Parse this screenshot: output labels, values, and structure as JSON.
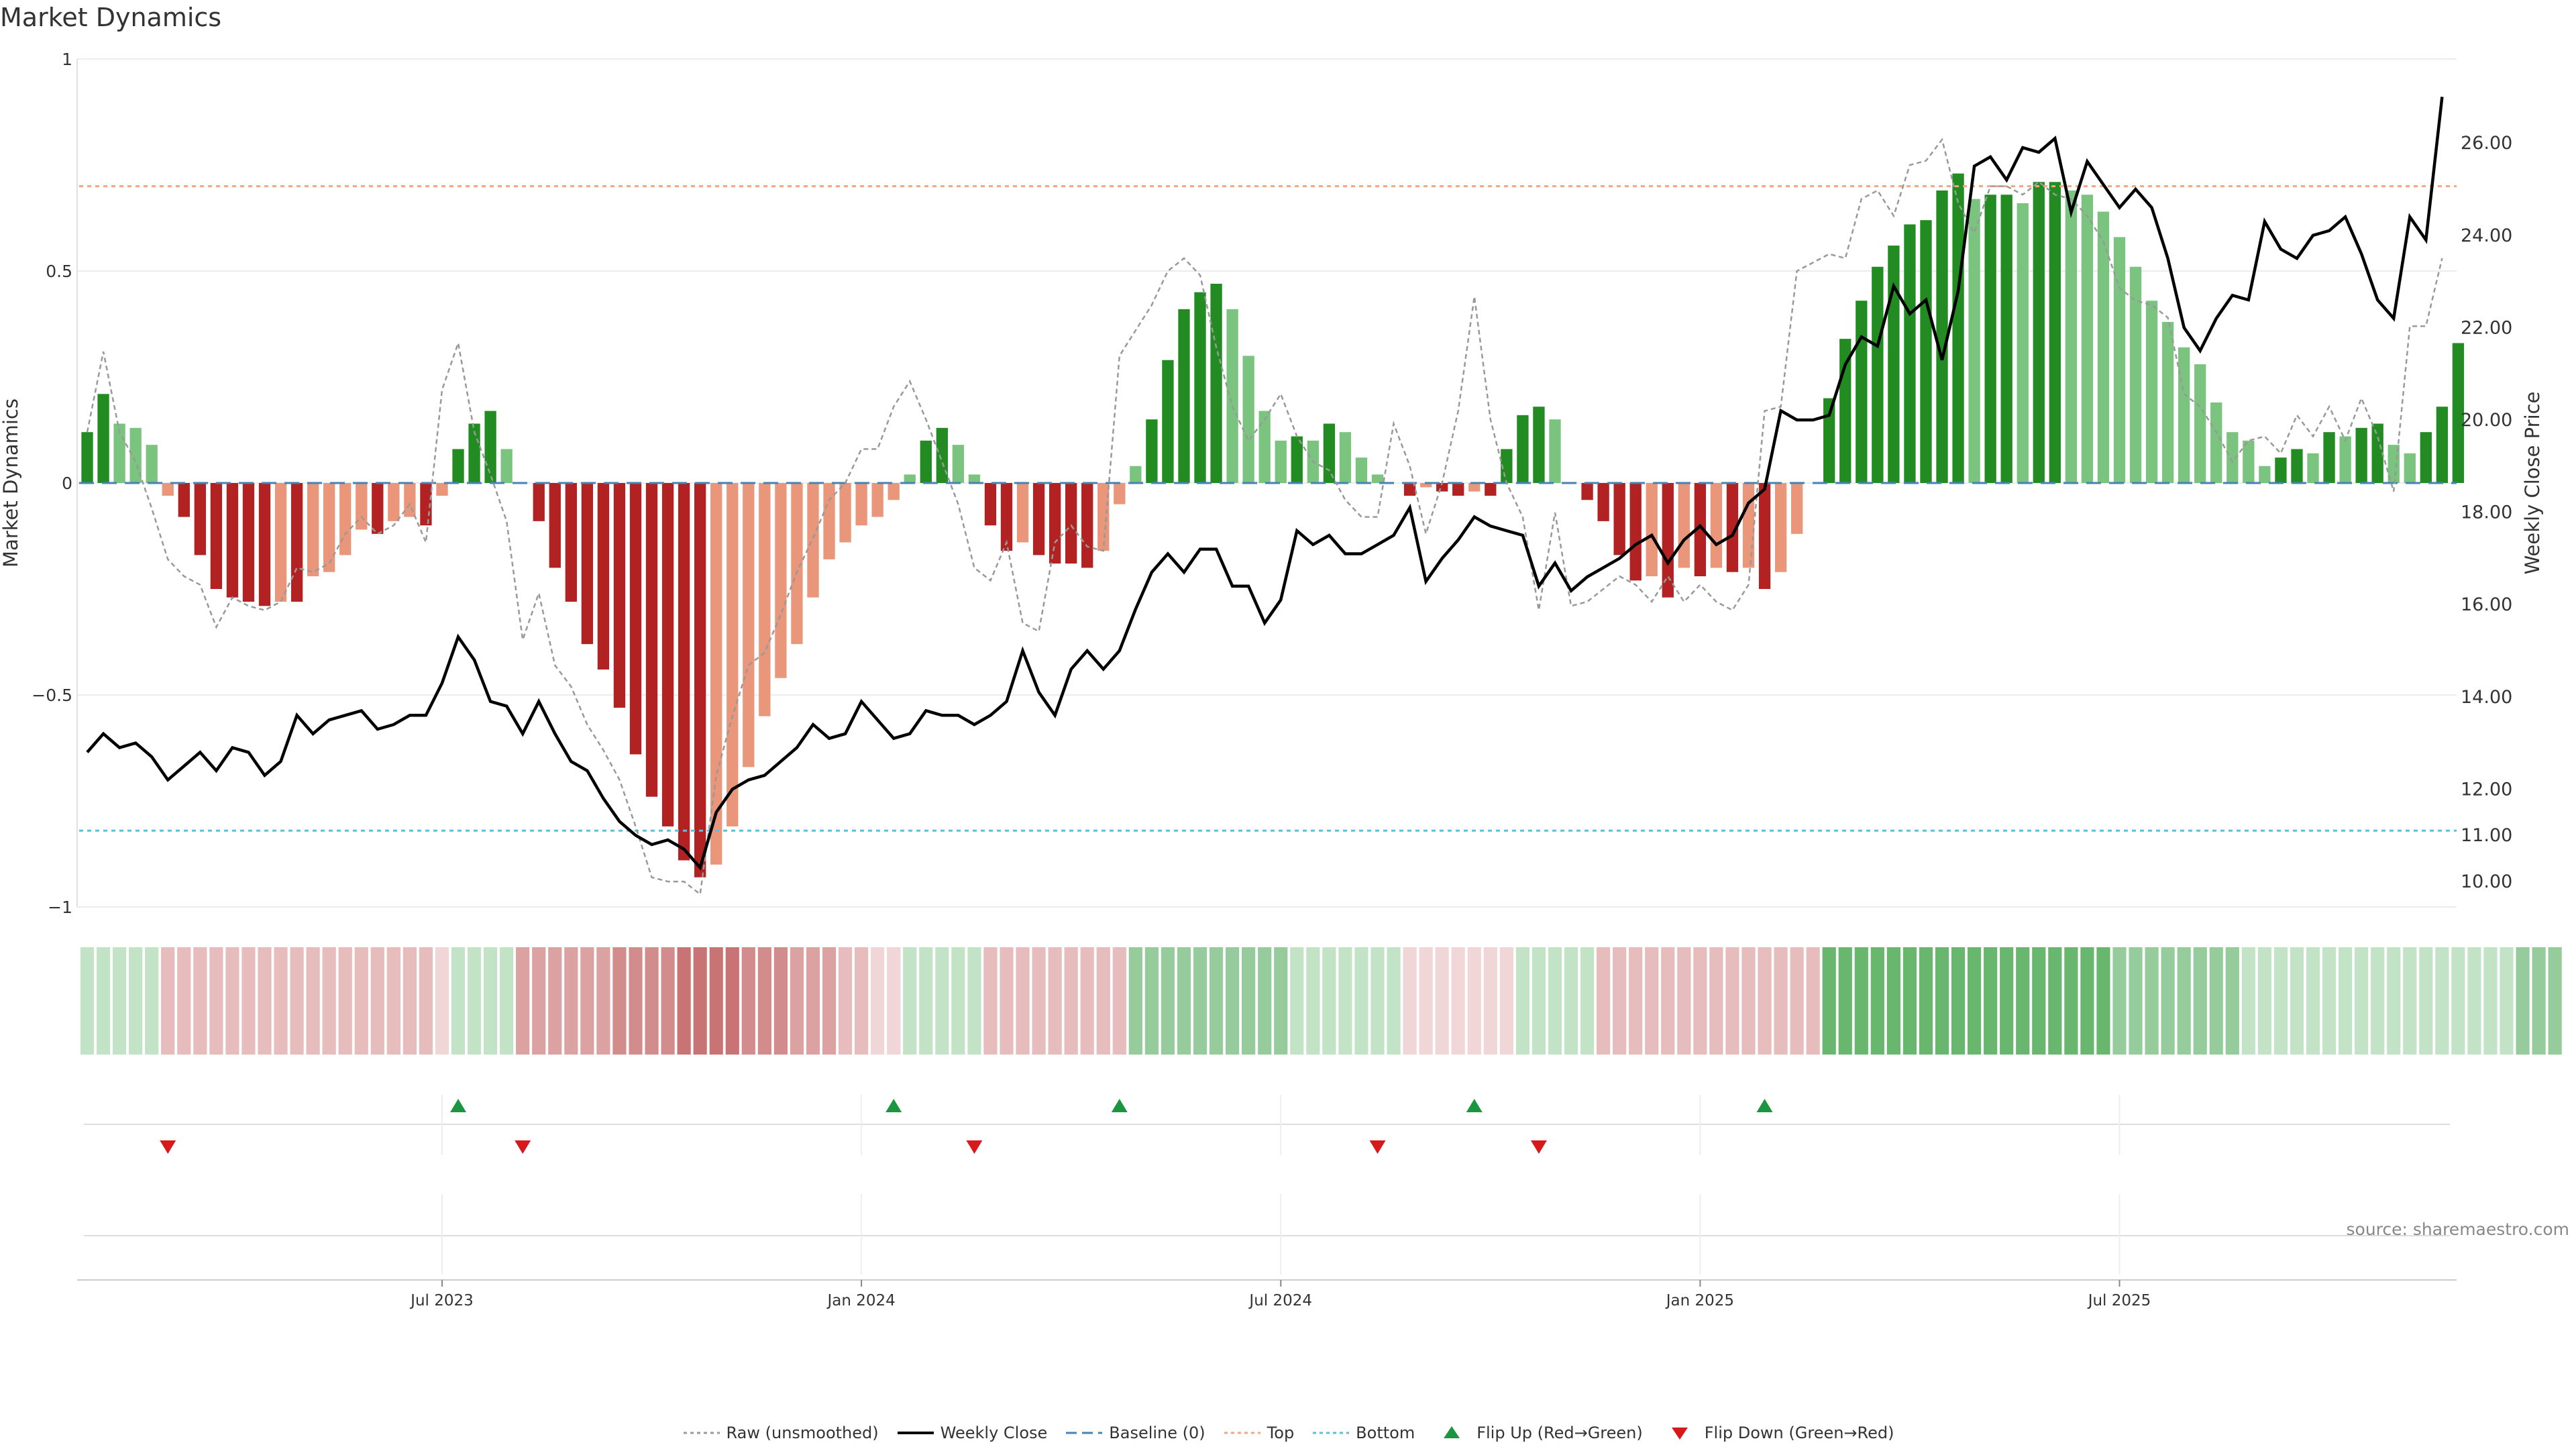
{
  "page": {
    "title": "Market Dynamics",
    "source": "source: sharemaestro.com"
  },
  "chart_data": {
    "type": "bar",
    "title": "Market Dynamics",
    "ylabel": "Market Dynamics",
    "y2label": "Weekly Close Price",
    "ylim": [
      -1,
      1
    ],
    "y2lim": [
      9.5,
      28
    ],
    "yticks": [
      "1",
      "0.5",
      "0",
      "−0.5",
      "−1"
    ],
    "yticks_values": [
      1,
      0.5,
      0,
      -0.5,
      -1
    ],
    "y2ticks": [
      "26.00",
      "24.00",
      "22.00",
      "20.00",
      "18.00",
      "16.00",
      "14.00",
      "12.00",
      "11.00",
      "10.00"
    ],
    "y2ticks_values": [
      26,
      24,
      22,
      20,
      18,
      16,
      14,
      12,
      11,
      10
    ],
    "xticks": [
      "Jul 2023",
      "Jan 2024",
      "Jul 2024",
      "Jan 2025",
      "Jul 2025"
    ],
    "xticks_week_index": [
      22,
      48,
      74,
      100,
      126
    ],
    "top_level": 0.7,
    "bottom_level": -0.82,
    "colors": {
      "strong_up": "#228b22",
      "weak_up": "#7bc47f",
      "strong_down": "#b22222",
      "weak_down": "#e9967a",
      "close": "#000000",
      "raw": "#999999",
      "baseline": "#4682b4",
      "top": "#f4a582",
      "bottom": "#5bc0de",
      "flip_up": "#1a9641",
      "flip_down": "#d7191c"
    },
    "series": [
      {
        "name": "Market Dynamics",
        "values": [
          0.12,
          0.21,
          0.14,
          0.13,
          0.09,
          -0.03,
          -0.08,
          -0.17,
          -0.25,
          -0.27,
          -0.28,
          -0.29,
          -0.28,
          -0.28,
          -0.22,
          -0.21,
          -0.17,
          -0.11,
          -0.12,
          -0.09,
          -0.08,
          -0.1,
          -0.03,
          0.08,
          0.14,
          0.17,
          0.08,
          0,
          -0.09,
          -0.2,
          -0.28,
          -0.38,
          -0.44,
          -0.53,
          -0.64,
          -0.74,
          -0.81,
          -0.89,
          -0.93,
          -0.9,
          -0.81,
          -0.67,
          -0.55,
          -0.46,
          -0.38,
          -0.27,
          -0.18,
          -0.14,
          -0.1,
          -0.08,
          -0.04,
          0.02,
          0.1,
          0.13,
          0.09,
          0.02,
          -0.1,
          -0.16,
          -0.14,
          -0.17,
          -0.19,
          -0.19,
          -0.2,
          -0.16,
          -0.05,
          0.04,
          0.15,
          0.29,
          0.41,
          0.45,
          0.47,
          0.41,
          0.3,
          0.17,
          0.1,
          0.11,
          0.1,
          0.14,
          0.12,
          0.06,
          0.02,
          0,
          -0.03,
          -0.01,
          -0.02,
          -0.03,
          -0.02,
          -0.03,
          0.08,
          0.16,
          0.18,
          0.15,
          0,
          -0.04,
          -0.09,
          -0.17,
          -0.23,
          -0.22,
          -0.27,
          -0.2,
          -0.22,
          -0.2,
          -0.21,
          -0.2,
          -0.25,
          -0.21,
          -0.12,
          0,
          0.2,
          0.34,
          0.43,
          0.51,
          0.56,
          0.61,
          0.62,
          0.69,
          0.73,
          0.67,
          0.68,
          0.68,
          0.66,
          0.71,
          0.71,
          0.69,
          0.68,
          0.64,
          0.58,
          0.51,
          0.43,
          0.38,
          0.32,
          0.28,
          0.19,
          0.12,
          0.1,
          0.04,
          0.06,
          0.08,
          0.07,
          0.12,
          0.11,
          0.13,
          0.14,
          0.09,
          0.07,
          0.12,
          0.18,
          0.33
        ]
      },
      {
        "name": "Raw (unsmoothed)",
        "values": [
          0.12,
          0.31,
          0.12,
          0.05,
          -0.06,
          -0.18,
          -0.22,
          -0.24,
          -0.34,
          -0.27,
          -0.29,
          -0.3,
          -0.28,
          -0.2,
          -0.21,
          -0.19,
          -0.12,
          -0.08,
          -0.12,
          -0.1,
          -0.05,
          -0.14,
          0.22,
          0.33,
          0.12,
          0.02,
          -0.09,
          -0.37,
          -0.26,
          -0.43,
          -0.48,
          -0.57,
          -0.63,
          -0.7,
          -0.81,
          -0.93,
          -0.94,
          -0.94,
          -0.97,
          -0.69,
          -0.55,
          -0.43,
          -0.4,
          -0.31,
          -0.21,
          -0.13,
          -0.04,
          0.0,
          0.08,
          0.08,
          0.18,
          0.24,
          0.15,
          0.05,
          -0.05,
          -0.2,
          -0.23,
          -0.14,
          -0.33,
          -0.35,
          -0.14,
          -0.1,
          -0.15,
          -0.16,
          0.3,
          0.36,
          0.42,
          0.5,
          0.53,
          0.49,
          0.32,
          0.18,
          0.1,
          0.15,
          0.21,
          0.11,
          0.05,
          0.03,
          -0.04,
          -0.08,
          -0.08,
          0.14,
          0.04,
          -0.12,
          0.0,
          0.17,
          0.44,
          0.15,
          0.0,
          -0.08,
          -0.3,
          -0.07,
          -0.29,
          -0.28,
          -0.25,
          -0.22,
          -0.24,
          -0.28,
          -0.22,
          -0.28,
          -0.24,
          -0.28,
          -0.3,
          -0.24,
          0.17,
          0.18,
          0.5,
          0.52,
          0.54,
          0.53,
          0.67,
          0.69,
          0.63,
          0.75,
          0.76,
          0.81,
          0.66,
          0.59,
          0.7,
          0.7,
          0.68,
          0.71,
          0.68,
          0.67,
          0.63,
          0.57,
          0.46,
          0.43,
          0.42,
          0.39,
          0.21,
          0.18,
          0.12,
          0.05,
          0.1,
          0.11,
          0.07,
          0.16,
          0.11,
          0.18,
          0.1,
          0.2,
          0.11,
          -0.02,
          0.37,
          0.37,
          0.53
        ]
      },
      {
        "name": "Weekly Close",
        "values": [
          12.8,
          13.2,
          12.9,
          13.0,
          12.7,
          12.2,
          12.5,
          12.8,
          12.4,
          12.9,
          12.8,
          12.3,
          12.6,
          13.6,
          13.2,
          13.5,
          13.6,
          13.7,
          13.3,
          13.4,
          13.6,
          13.6,
          14.3,
          15.3,
          14.8,
          13.9,
          13.8,
          13.2,
          13.9,
          13.2,
          12.6,
          12.4,
          11.8,
          11.3,
          11.0,
          10.8,
          10.9,
          10.7,
          10.3,
          11.5,
          12.0,
          12.2,
          12.3,
          12.6,
          12.9,
          13.4,
          13.1,
          13.2,
          13.9,
          13.5,
          13.1,
          13.2,
          13.7,
          13.6,
          13.6,
          13.4,
          13.6,
          13.9,
          15.0,
          14.1,
          13.6,
          14.6,
          15.0,
          14.6,
          15.0,
          15.9,
          16.7,
          17.1,
          16.7,
          17.2,
          17.2,
          16.4,
          16.4,
          15.6,
          16.1,
          17.6,
          17.3,
          17.5,
          17.1,
          17.1,
          17.3,
          17.5,
          18.1,
          16.5,
          17.0,
          17.4,
          17.9,
          17.7,
          17.6,
          17.5,
          16.4,
          16.9,
          16.3,
          16.6,
          16.8,
          17.0,
          17.3,
          17.5,
          16.9,
          17.4,
          17.7,
          17.3,
          17.5,
          18.2,
          18.5,
          20.2,
          20.0,
          20.0,
          20.1,
          21.2,
          21.8,
          21.6,
          22.9,
          22.3,
          22.6,
          21.3,
          22.8,
          25.5,
          25.7,
          25.2,
          25.9,
          25.8,
          26.1,
          24.5,
          25.6,
          25.1,
          24.6,
          25.0,
          24.6,
          23.5,
          22.0,
          21.5,
          22.2,
          22.7,
          22.6,
          24.3,
          23.7,
          23.5,
          24.0,
          24.1,
          24.4,
          23.6,
          22.6,
          22.2,
          24.4,
          23.9,
          27.0
        ]
      }
    ],
    "regime_strength": [
      1,
      1,
      1,
      1,
      1,
      -2,
      -2,
      -2,
      -2,
      -2,
      -2,
      -2,
      -2,
      -2,
      -2,
      -2,
      -2,
      -2,
      -2,
      -2,
      -2,
      -2,
      -1,
      1,
      1,
      1,
      1,
      -3,
      -3,
      -3,
      -3,
      -3,
      -3,
      -4,
      -4,
      -4,
      -4,
      -5,
      -5,
      -5,
      -5,
      -4,
      -4,
      -4,
      -3,
      -3,
      -3,
      -2,
      -2,
      -1,
      -1,
      1,
      1,
      1,
      1,
      1,
      -2,
      -2,
      -2,
      -2,
      -2,
      -2,
      -2,
      -2,
      -2,
      2,
      2,
      2,
      2,
      2,
      2,
      2,
      2,
      2,
      2,
      1,
      1,
      1,
      1,
      1,
      1,
      1,
      -1,
      -1,
      -1,
      -1,
      -1,
      -1,
      -1,
      1,
      1,
      1,
      1,
      1,
      -2,
      -2,
      -2,
      -2,
      -2,
      -2,
      -2,
      -2,
      -2,
      -2,
      -2,
      -2,
      -2,
      -2,
      3,
      3,
      3,
      3,
      3,
      3,
      3,
      3,
      3,
      3,
      3,
      3,
      3,
      3,
      3,
      3,
      3,
      3,
      2,
      2,
      2,
      2,
      2,
      2,
      2,
      2,
      1,
      1,
      1,
      1,
      1,
      1,
      1,
      1,
      1,
      1,
      1,
      1,
      1,
      1,
      1,
      1,
      1,
      2,
      2,
      2
    ],
    "flip_up_weeks": [
      23,
      50,
      64,
      86,
      104
    ],
    "flip_down_weeks": [
      5,
      27,
      55,
      80,
      90
    ],
    "legend": [
      {
        "label": "Raw (unsmoothed)",
        "kind": "dotted",
        "color": "#999999"
      },
      {
        "label": "Weekly Close",
        "kind": "solid",
        "color": "#000000"
      },
      {
        "label": "Baseline (0)",
        "kind": "dashed",
        "color": "#4682b4"
      },
      {
        "label": "Top",
        "kind": "dotted",
        "color": "#f4a582"
      },
      {
        "label": "Bottom",
        "kind": "dotted",
        "color": "#5bc0de"
      },
      {
        "label": "Flip Up (Red→Green)",
        "kind": "triangle-up",
        "color": "#1a9641"
      },
      {
        "label": "Flip Down (Green→Red)",
        "kind": "triangle-down",
        "color": "#d7191c"
      }
    ]
  }
}
